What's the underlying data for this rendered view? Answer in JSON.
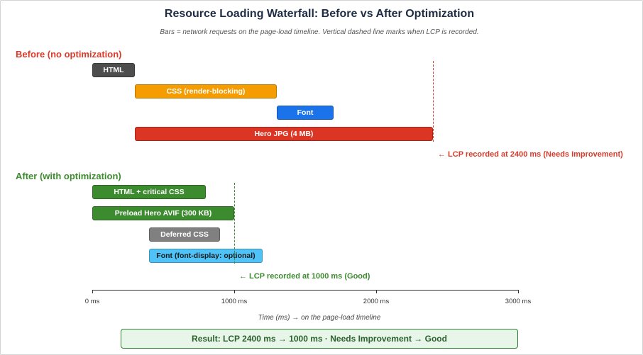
{
  "title": "Resource Loading Waterfall: Before vs After Optimization",
  "subtitle": "Bars = network requests on the page-load timeline. Vertical dashed line marks when LCP is recorded.",
  "axis": {
    "min_ms": 0,
    "max_ms": 3000,
    "ticks": [
      {
        "value": 0,
        "label": "0 ms"
      },
      {
        "value": 1000,
        "label": "1000 ms"
      },
      {
        "value": 2000,
        "label": "2000 ms"
      },
      {
        "value": 3000,
        "label": "3000 ms"
      }
    ],
    "title": "Time (ms) → on the page-load timeline"
  },
  "sections": [
    {
      "label": "Before (no optimization)",
      "color": "#d93b2b",
      "lcp_ms": 2400,
      "lcp_note": "← LCP recorded at 2400 ms (Needs Improvement)",
      "bars": [
        {
          "label": "HTML",
          "start_ms": 0,
          "end_ms": 300,
          "color": "#4d4d4d"
        },
        {
          "label": "CSS (render-blocking)",
          "start_ms": 300,
          "end_ms": 1300,
          "color": "#f59c00"
        },
        {
          "label": "Font",
          "start_ms": 1300,
          "end_ms": 1700,
          "color": "#1a73e8"
        },
        {
          "label": "Hero JPG (4 MB)",
          "start_ms": 300,
          "end_ms": 2400,
          "color": "#dc3523"
        }
      ]
    },
    {
      "label": "After (with optimization)",
      "color": "#3d8b2f",
      "lcp_ms": 1000,
      "lcp_note": "← LCP recorded at 1000 ms (Good)",
      "bars": [
        {
          "label": "HTML + critical CSS",
          "start_ms": 0,
          "end_ms": 800,
          "color": "#3d8b2f"
        },
        {
          "label": "Preload Hero AVIF (300 KB)",
          "start_ms": 0,
          "end_ms": 1000,
          "color": "#3d8b2f"
        },
        {
          "label": "Deferred CSS",
          "start_ms": 400,
          "end_ms": 900,
          "color": "#808080"
        },
        {
          "label": "Font (font-display: optional)",
          "start_ms": 400,
          "end_ms": 1200,
          "color": "#4fc3f7",
          "text_color": "#1a1a1a"
        }
      ]
    }
  ],
  "result": "Result: LCP 2400 ms → 1000 ms · Needs Improvement → Good"
}
